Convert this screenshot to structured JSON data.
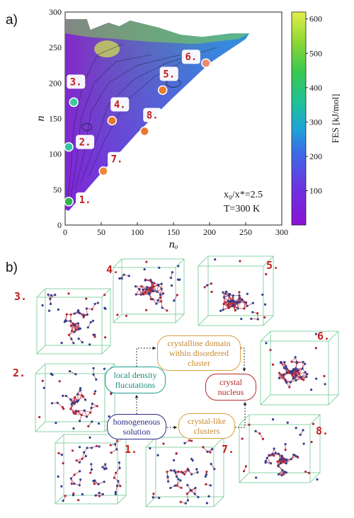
{
  "panel_a": {
    "label": "a)",
    "annotation_line1": "x₀/x*=2.5",
    "annotation_line2": "T=300 K"
  },
  "panel_b": {
    "label": "b)",
    "flow": {
      "homogeneous": "homogeneous solution",
      "local_density": "local density flucutations",
      "crystalline_domain": "crystalline domain within disordered cluster",
      "crystal_like": "crystal-like clusters",
      "crystal_nucleus": "crystal nucleus"
    },
    "snapshots": [
      "1.",
      "2.",
      "3.",
      "4.",
      "5.",
      "6.",
      "7.",
      "8."
    ]
  },
  "chart_data": {
    "type": "heatmap",
    "title": "",
    "xlabel": "nₒ",
    "ylabel": "n",
    "xlim": [
      0,
      300
    ],
    "ylim": [
      0,
      300
    ],
    "x_ticks": [
      0,
      50,
      100,
      150,
      200,
      250,
      300
    ],
    "y_ticks": [
      0,
      50,
      100,
      150,
      200,
      250,
      300
    ],
    "colorbar": {
      "label": "FES [kJ/mol]",
      "range": [
        0,
        620
      ],
      "ticks": [
        100,
        200,
        300,
        400,
        500,
        600
      ]
    },
    "points": [
      {
        "label": "1.",
        "x": 5,
        "y": 33,
        "color": "#2fb54c"
      },
      {
        "label": "2.",
        "x": 5,
        "y": 110,
        "color": "#33c6a8"
      },
      {
        "label": "3.",
        "x": 12,
        "y": 173,
        "color": "#3ec79c"
      },
      {
        "label": "4.",
        "x": 65,
        "y": 147,
        "color": "#e5772a"
      },
      {
        "label": "5.",
        "x": 135,
        "y": 190,
        "color": "#ea7a2c"
      },
      {
        "label": "6.",
        "x": 195,
        "y": 228,
        "color": "#ee8a70"
      },
      {
        "label": "7.",
        "x": 53,
        "y": 76,
        "color": "#ed8a37"
      },
      {
        "label": "8.",
        "x": 110,
        "y": 132,
        "color": "#e87a2d"
      }
    ],
    "colors": {
      "point_label": "#c41d1d",
      "box_edge": "#7fcf9e",
      "atom_blue": "#2d3f8f",
      "atom_red": "#b3263a"
    }
  }
}
